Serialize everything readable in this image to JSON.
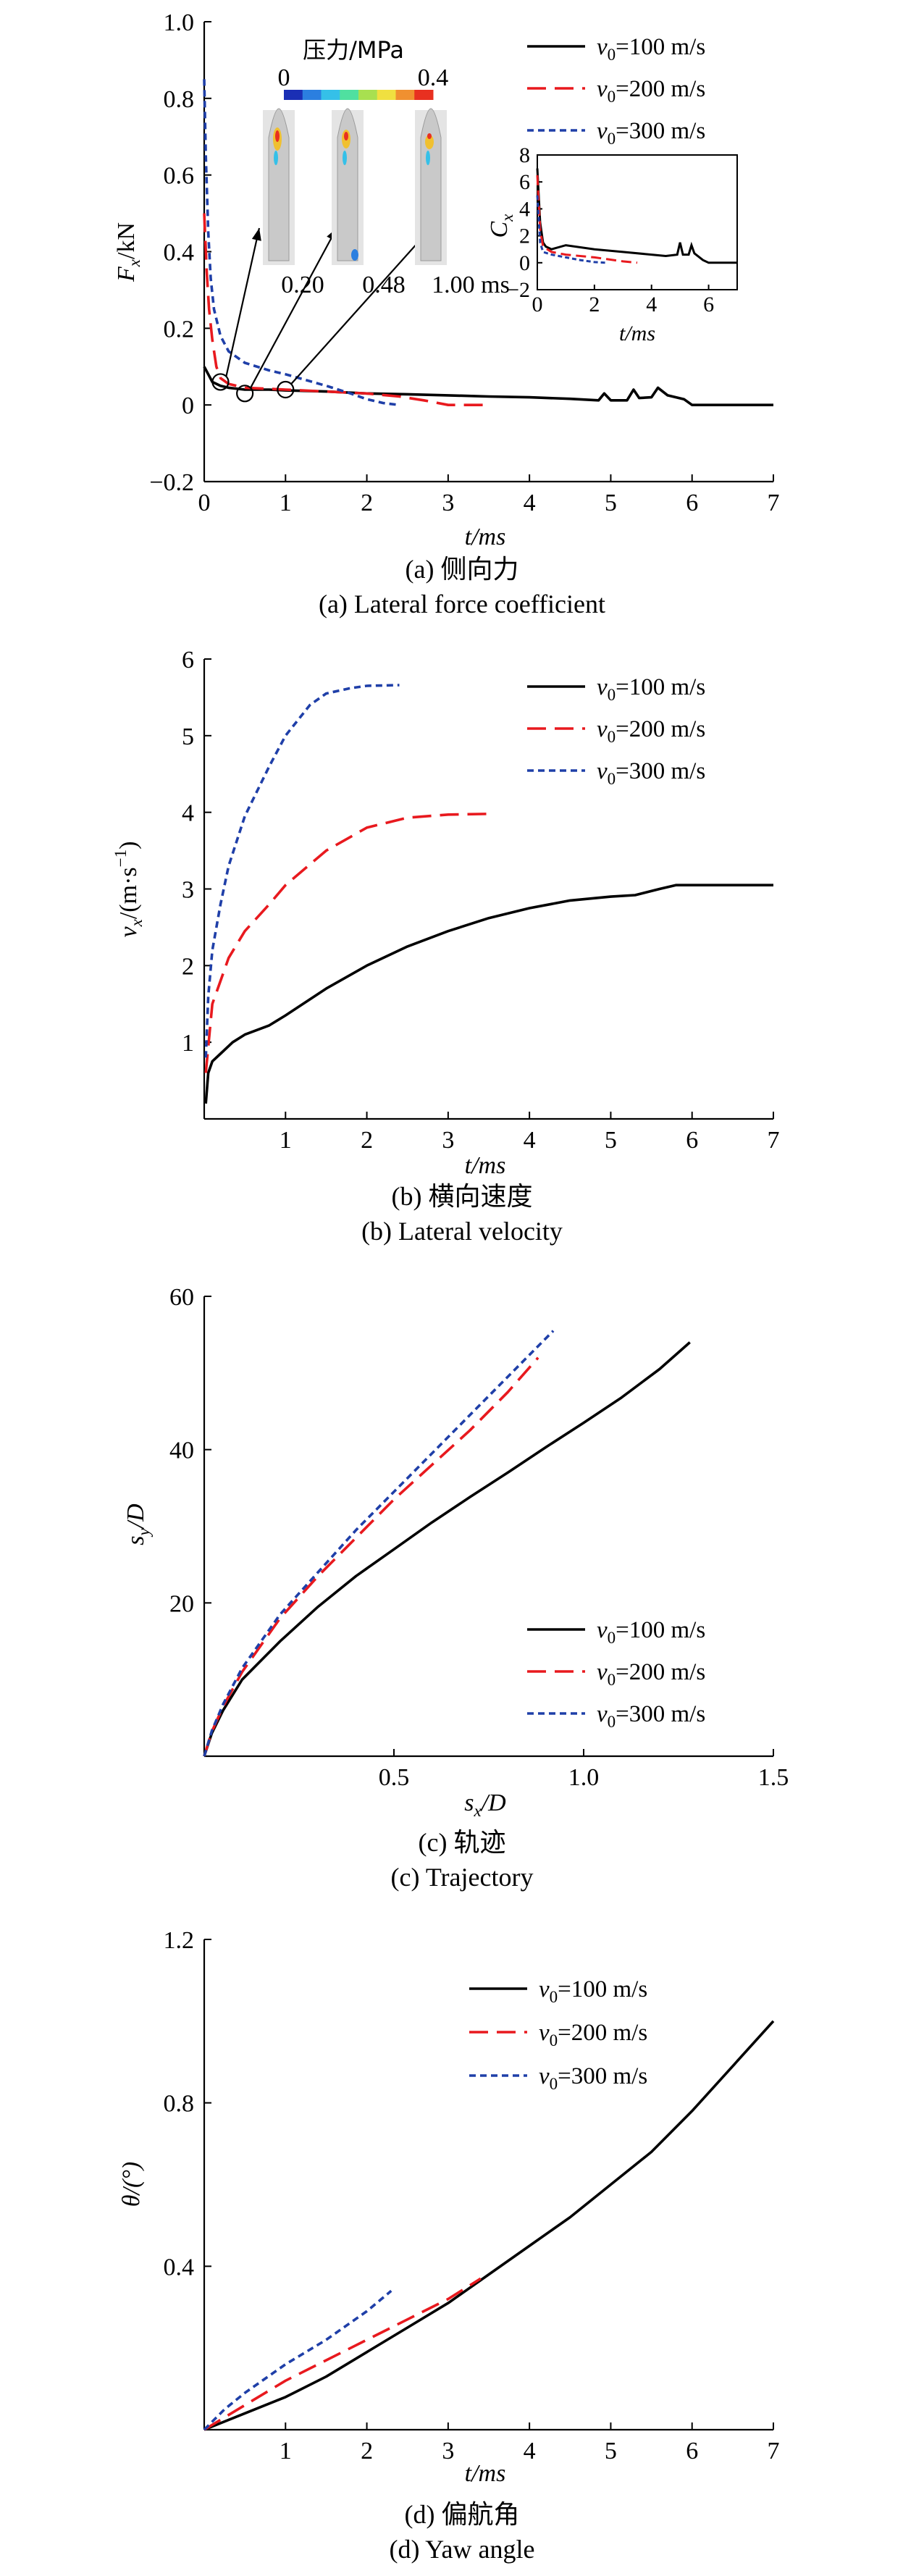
{
  "chart_data": [
    {
      "id": "a",
      "type": "line",
      "xlabel": "t/ms",
      "ylabel": "F",
      "ylabel_sub": "x",
      "ylabel_unit": "/kN",
      "xlim": [
        0,
        7
      ],
      "ylim": [
        -0.2,
        1.0
      ],
      "xticks": [
        0,
        1,
        2,
        3,
        4,
        5,
        6,
        7
      ],
      "yticks": [
        -0.2,
        0,
        0.2,
        0.4,
        0.6,
        0.8,
        1.0
      ],
      "ytick_labels": [
        "−0.2",
        "0",
        "0.2",
        "0.4",
        "0.6",
        "0.8",
        "1.0"
      ],
      "legend": {
        "position": "top-right"
      },
      "series": [
        {
          "name_main": "v",
          "name_sub": "0",
          "name_rest": "=100 m/s",
          "color": "#000000",
          "dash": "solid",
          "x": [
            0.0,
            0.05,
            0.1,
            0.2,
            0.3,
            0.5,
            0.8,
            1.0,
            1.5,
            2.0,
            2.5,
            3.0,
            3.5,
            4.0,
            4.5,
            4.85,
            4.92,
            5.0,
            5.2,
            5.28,
            5.35,
            5.5,
            5.58,
            5.7,
            5.9,
            6.0,
            6.5,
            7.0
          ],
          "y": [
            0.1,
            0.08,
            0.06,
            0.05,
            0.045,
            0.04,
            0.04,
            0.038,
            0.035,
            0.03,
            0.028,
            0.025,
            0.022,
            0.02,
            0.016,
            0.012,
            0.03,
            0.012,
            0.012,
            0.04,
            0.018,
            0.02,
            0.045,
            0.025,
            0.015,
            0.0,
            0.0,
            0.0
          ]
        },
        {
          "name_main": "v",
          "name_sub": "0",
          "name_rest": "=200 m/s",
          "color": "#e8191e",
          "dash": "long",
          "x": [
            0.0,
            0.03,
            0.06,
            0.1,
            0.15,
            0.2,
            0.3,
            0.5,
            0.8,
            1.0,
            1.5,
            2.0,
            2.4,
            2.7,
            3.0,
            3.5
          ],
          "y": [
            0.5,
            0.35,
            0.25,
            0.17,
            0.1,
            0.07,
            0.055,
            0.045,
            0.042,
            0.04,
            0.035,
            0.03,
            0.022,
            0.012,
            0.0,
            0.0
          ]
        },
        {
          "name_main": "v",
          "name_sub": "0",
          "name_rest": "=300 m/s",
          "color": "#1f3fa8",
          "dash": "short",
          "x": [
            0.0,
            0.02,
            0.05,
            0.08,
            0.12,
            0.2,
            0.3,
            0.5,
            0.8,
            1.0,
            1.5,
            1.8,
            2.0,
            2.2,
            2.4
          ],
          "y": [
            0.85,
            0.65,
            0.45,
            0.33,
            0.25,
            0.18,
            0.14,
            0.11,
            0.09,
            0.08,
            0.05,
            0.03,
            0.015,
            0.005,
            0.0
          ]
        }
      ],
      "markers": [
        {
          "x": 0.2,
          "y": 0.06,
          "callout": "0.20"
        },
        {
          "x": 0.5,
          "y": 0.03,
          "callout": "0.48"
        },
        {
          "x": 1.0,
          "y": 0.04,
          "callout": "1.00 ms"
        }
      ],
      "pressure_colorbar": {
        "title": "压力/MPa",
        "min_label": "0",
        "max_label": "0.4",
        "colors": [
          "#1a2fb5",
          "#2b7fe0",
          "#35c0e8",
          "#50e0a0",
          "#a8e050",
          "#f0e040",
          "#f09030",
          "#e83020"
        ]
      },
      "inset": {
        "xlabel": "t/ms",
        "ylabel": "C",
        "ylabel_sub": "x",
        "xlim": [
          0,
          7
        ],
        "ylim": [
          -2,
          8
        ],
        "xticks": [
          0,
          2,
          4,
          6
        ],
        "yticks": [
          -2,
          0,
          2,
          4,
          6,
          8
        ],
        "ytick_labels": [
          "−2",
          "0",
          "2",
          "4",
          "6",
          "8"
        ],
        "series": [
          {
            "color": "#000000",
            "dash": "solid",
            "x": [
              0.0,
              0.1,
              0.2,
              0.3,
              0.5,
              1.0,
              2.0,
              3.0,
              4.0,
              4.5,
              4.9,
              5.0,
              5.1,
              5.3,
              5.4,
              5.5,
              5.8,
              6.0,
              6.5,
              7.0
            ],
            "y": [
              7.0,
              3.0,
              1.5,
              1.2,
              1.0,
              1.3,
              1.0,
              0.8,
              0.6,
              0.5,
              0.6,
              1.5,
              0.6,
              0.6,
              1.3,
              0.7,
              0.2,
              0.0,
              0.0,
              0.0
            ]
          },
          {
            "color": "#e8191e",
            "dash": "long",
            "x": [
              0.0,
              0.1,
              0.2,
              0.5,
              1.0,
              2.0,
              3.0,
              3.5
            ],
            "y": [
              6.5,
              2.5,
              1.2,
              0.8,
              0.6,
              0.4,
              0.1,
              0.0
            ]
          },
          {
            "color": "#1f3fa8",
            "dash": "short",
            "x": [
              0.0,
              0.1,
              0.2,
              0.5,
              1.0,
              1.5,
              2.0,
              2.4
            ],
            "y": [
              5.0,
              1.5,
              0.8,
              0.6,
              0.4,
              0.2,
              0.05,
              0.0
            ]
          }
        ]
      }
    },
    {
      "id": "b",
      "type": "line",
      "xlabel": "t/ms",
      "ylabel": "v",
      "ylabel_sub": "x",
      "ylabel_unit": "/(m·s",
      "ylabel_sup": "−1",
      "ylabel_close": ")",
      "xlim": [
        0,
        7
      ],
      "ylim": [
        0,
        6
      ],
      "xticks": [
        1,
        2,
        3,
        4,
        5,
        6,
        7
      ],
      "yticks": [
        1,
        2,
        3,
        4,
        5,
        6
      ],
      "legend": {
        "position": "top-right"
      },
      "series": [
        {
          "name_main": "v",
          "name_sub": "0",
          "name_rest": "=100 m/s",
          "color": "#000000",
          "dash": "solid",
          "x": [
            0.02,
            0.05,
            0.1,
            0.2,
            0.35,
            0.5,
            0.8,
            1.0,
            1.5,
            2.0,
            2.5,
            3.0,
            3.5,
            4.0,
            4.5,
            5.0,
            5.3,
            5.6,
            5.8,
            6.0,
            6.5,
            7.0
          ],
          "y": [
            0.2,
            0.6,
            0.75,
            0.85,
            1.0,
            1.1,
            1.22,
            1.35,
            1.7,
            2.0,
            2.25,
            2.45,
            2.62,
            2.75,
            2.85,
            2.9,
            2.92,
            3.0,
            3.05,
            3.05,
            3.05,
            3.05
          ]
        },
        {
          "name_main": "v",
          "name_sub": "0",
          "name_rest": "=200 m/s",
          "color": "#e8191e",
          "dash": "long",
          "x": [
            0.02,
            0.1,
            0.2,
            0.3,
            0.5,
            0.8,
            1.0,
            1.5,
            2.0,
            2.5,
            3.0,
            3.5
          ],
          "y": [
            0.6,
            1.5,
            1.8,
            2.1,
            2.45,
            2.8,
            3.05,
            3.5,
            3.8,
            3.93,
            3.97,
            3.98
          ]
        },
        {
          "name_main": "v",
          "name_sub": "0",
          "name_rest": "=300 m/s",
          "color": "#1f3fa8",
          "dash": "short",
          "x": [
            0.02,
            0.05,
            0.1,
            0.2,
            0.3,
            0.5,
            0.8,
            1.0,
            1.3,
            1.5,
            1.8,
            2.0,
            2.4
          ],
          "y": [
            0.8,
            1.6,
            2.2,
            2.8,
            3.3,
            3.95,
            4.6,
            5.0,
            5.4,
            5.55,
            5.62,
            5.65,
            5.66
          ]
        }
      ]
    },
    {
      "id": "c",
      "type": "line",
      "xlabel": "s",
      "xlabel_sub": "x",
      "xlabel_rest": "/D",
      "ylabel": "s",
      "ylabel_sub": "y",
      "ylabel_unit": "/D",
      "xlim": [
        0,
        1.5
      ],
      "ylim": [
        0,
        60
      ],
      "xticks": [
        0.5,
        1.0,
        1.5
      ],
      "xtick_labels": [
        "0.5",
        "1.0",
        "1.5"
      ],
      "yticks": [
        20,
        40,
        60
      ],
      "legend": {
        "position": "lower-right"
      },
      "series": [
        {
          "name_main": "v",
          "name_sub": "0",
          "name_rest": "=100 m/s",
          "color": "#000000",
          "dash": "solid",
          "x": [
            0,
            0.02,
            0.05,
            0.1,
            0.2,
            0.3,
            0.4,
            0.5,
            0.6,
            0.7,
            0.8,
            0.9,
            1.0,
            1.1,
            1.2,
            1.28
          ],
          "y": [
            0,
            3,
            6,
            10,
            15,
            19.5,
            23.5,
            27,
            30.5,
            33.8,
            37,
            40.3,
            43.5,
            46.8,
            50.5,
            54
          ]
        },
        {
          "name_main": "v",
          "name_sub": "0",
          "name_rest": "=200 m/s",
          "color": "#e8191e",
          "dash": "long",
          "x": [
            0,
            0.02,
            0.05,
            0.1,
            0.2,
            0.3,
            0.4,
            0.5,
            0.6,
            0.7,
            0.8,
            0.88
          ],
          "y": [
            0,
            3.2,
            6.5,
            11,
            18,
            23.5,
            28.5,
            33.5,
            38,
            42.5,
            47.5,
            52
          ]
        },
        {
          "name_main": "v",
          "name_sub": "0",
          "name_rest": "=300 m/s",
          "color": "#1f3fa8",
          "dash": "short",
          "x": [
            0,
            0.02,
            0.05,
            0.1,
            0.2,
            0.3,
            0.4,
            0.5,
            0.6,
            0.7,
            0.8,
            0.92
          ],
          "y": [
            0,
            3.3,
            6.8,
            11.5,
            18.5,
            24,
            29.5,
            34.5,
            39.5,
            44.5,
            49.5,
            55.5
          ]
        }
      ]
    },
    {
      "id": "d",
      "type": "line",
      "xlabel": "t/ms",
      "ylabel": "θ/(°)",
      "xlim": [
        0,
        7
      ],
      "ylim": [
        0,
        1.2
      ],
      "xticks": [
        1,
        2,
        3,
        4,
        5,
        6,
        7
      ],
      "yticks": [
        0.4,
        0.8,
        1.2
      ],
      "ytick_labels": [
        "0.4",
        "0.8",
        "1.2"
      ],
      "legend": {
        "position": "top-center"
      },
      "series": [
        {
          "name_main": "v",
          "name_sub": "0",
          "name_rest": "=100 m/s",
          "color": "#000000",
          "dash": "solid",
          "x": [
            0,
            0.5,
            1.0,
            1.5,
            2.0,
            2.5,
            3.0,
            3.5,
            4.0,
            4.5,
            5.0,
            5.5,
            6.0,
            6.5,
            7.0
          ],
          "y": [
            0,
            0.04,
            0.08,
            0.13,
            0.19,
            0.25,
            0.31,
            0.38,
            0.45,
            0.52,
            0.6,
            0.68,
            0.78,
            0.89,
            1.0
          ]
        },
        {
          "name_main": "v",
          "name_sub": "0",
          "name_rest": "=200 m/s",
          "color": "#e8191e",
          "dash": "long",
          "x": [
            0,
            0.5,
            1.0,
            1.5,
            2.0,
            2.5,
            3.0,
            3.4
          ],
          "y": [
            0,
            0.06,
            0.12,
            0.17,
            0.22,
            0.27,
            0.32,
            0.37
          ]
        },
        {
          "name_main": "v",
          "name_sub": "0",
          "name_rest": "=300 m/s",
          "color": "#1f3fa8",
          "dash": "short",
          "x": [
            0,
            0.25,
            0.5,
            1.0,
            1.5,
            2.0,
            2.3
          ],
          "y": [
            0,
            0.05,
            0.09,
            0.16,
            0.22,
            0.29,
            0.34
          ]
        }
      ]
    }
  ],
  "captions": {
    "a_cn": "(a) 侧向力",
    "a_en": "(a) Lateral force coefficient",
    "b_cn": "(b) 横向速度",
    "b_en": "(b) Lateral velocity",
    "c_cn": "(c) 轨迹",
    "c_en": "(c) Trajectory",
    "d_cn": "(d) 偏航角",
    "d_en": "(d) Yaw angle"
  }
}
